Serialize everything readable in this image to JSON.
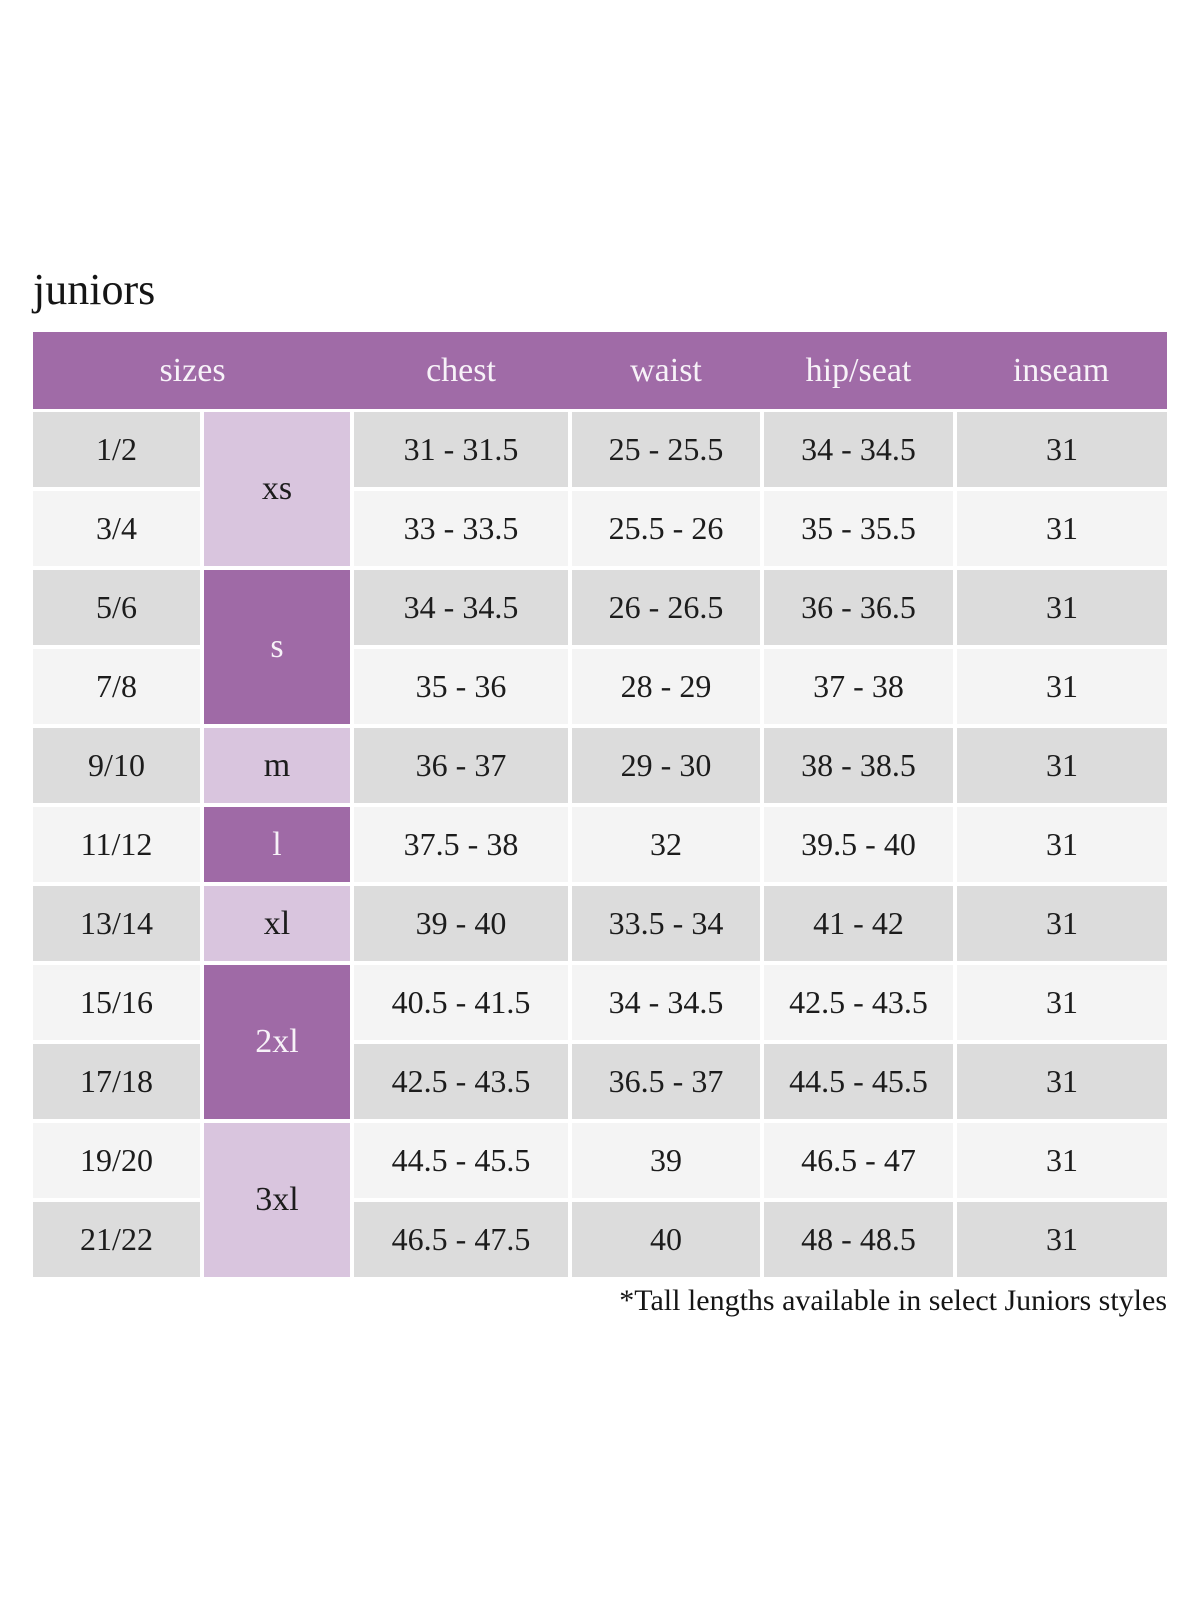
{
  "page": {
    "title": "juniors",
    "footnote": "*Tall lengths available in select Juniors styles"
  },
  "colors": {
    "header_purple": "#a06ba7",
    "dark_purple": "#9f6aa6",
    "light_purple": "#d9c5de",
    "row_gray": "#dcdcdc",
    "row_light": "#f4f4f4",
    "header_text": "#f7f2f8",
    "cell_text": "#1c1c1c",
    "page_bg": "#ffffff"
  },
  "table": {
    "headers": [
      {
        "id": "sizes",
        "label": "sizes"
      },
      {
        "id": "chest",
        "label": "chest"
      },
      {
        "id": "waist",
        "label": "waist"
      },
      {
        "id": "hip_seat",
        "label": "hip/seat"
      },
      {
        "id": "inseam",
        "label": "inseam"
      }
    ],
    "size_groups": [
      {
        "label": "xs",
        "rows": 2,
        "shade": "light"
      },
      {
        "label": "s",
        "rows": 2,
        "shade": "dark"
      },
      {
        "label": "m",
        "rows": 1,
        "shade": "light"
      },
      {
        "label": "l",
        "rows": 1,
        "shade": "dark"
      },
      {
        "label": "xl",
        "rows": 1,
        "shade": "light"
      },
      {
        "label": "2xl",
        "rows": 2,
        "shade": "dark"
      },
      {
        "label": "3xl",
        "rows": 2,
        "shade": "light"
      }
    ],
    "rows": [
      {
        "size": "1/2",
        "chest": "31 - 31.5",
        "waist": "25 - 25.5",
        "hip_seat": "34 - 34.5",
        "inseam": "31"
      },
      {
        "size": "3/4",
        "chest": "33 - 33.5",
        "waist": "25.5 - 26",
        "hip_seat": "35 - 35.5",
        "inseam": "31"
      },
      {
        "size": "5/6",
        "chest": "34 - 34.5",
        "waist": "26 - 26.5",
        "hip_seat": "36 - 36.5",
        "inseam": "31"
      },
      {
        "size": "7/8",
        "chest": "35 - 36",
        "waist": "28 - 29",
        "hip_seat": "37 - 38",
        "inseam": "31"
      },
      {
        "size": "9/10",
        "chest": "36 - 37",
        "waist": "29 - 30",
        "hip_seat": "38 - 38.5",
        "inseam": "31"
      },
      {
        "size": "11/12",
        "chest": "37.5 - 38",
        "waist": "32",
        "hip_seat": "39.5 - 40",
        "inseam": "31"
      },
      {
        "size": "13/14",
        "chest": "39 - 40",
        "waist": "33.5 - 34",
        "hip_seat": "41 - 42",
        "inseam": "31"
      },
      {
        "size": "15/16",
        "chest": "40.5 - 41.5",
        "waist": "34 - 34.5",
        "hip_seat": "42.5 - 43.5",
        "inseam": "31"
      },
      {
        "size": "17/18",
        "chest": "42.5 - 43.5",
        "waist": "36.5 - 37",
        "hip_seat": "44.5 - 45.5",
        "inseam": "31"
      },
      {
        "size": "19/20",
        "chest": "44.5 - 45.5",
        "waist": "39",
        "hip_seat": "46.5 - 47",
        "inseam": "31"
      },
      {
        "size": "21/22",
        "chest": "46.5 - 47.5",
        "waist": "40",
        "hip_seat": "48 - 48.5",
        "inseam": "31"
      }
    ]
  }
}
